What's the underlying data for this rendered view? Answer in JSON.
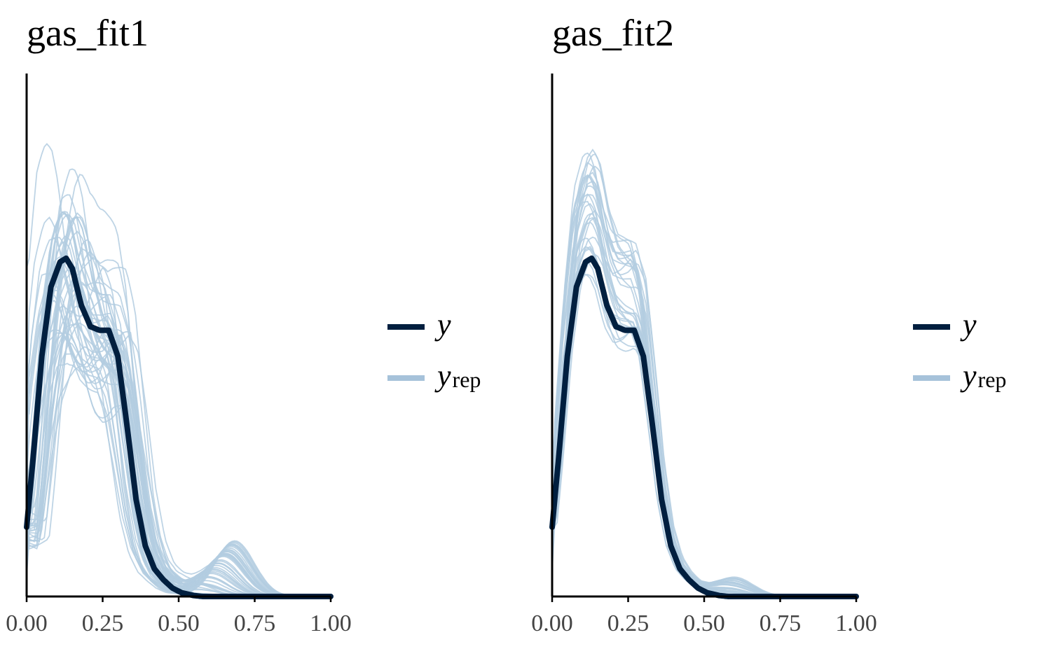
{
  "colors": {
    "y": "#011f3f",
    "yrep": "#b3cde0",
    "yrep_legend": "#a6c2da",
    "axis": "#000000",
    "tick_label": "#444444"
  },
  "legend": {
    "y_label": "y",
    "yrep_label": "y",
    "yrep_sub": "rep"
  },
  "chart_data": [
    {
      "type": "line",
      "title": "gas_fit1",
      "xlabel": "",
      "ylabel": "",
      "xlim": [
        0,
        1
      ],
      "xticks": [
        "0.00",
        "0.25",
        "0.50",
        "0.75",
        "1.00"
      ],
      "grid": false,
      "legend_position": "right",
      "observed": {
        "name": "y",
        "x": [
          0,
          0.02,
          0.05,
          0.08,
          0.11,
          0.13,
          0.15,
          0.18,
          0.21,
          0.24,
          0.27,
          0.3,
          0.33,
          0.36,
          0.39,
          0.42,
          0.45,
          0.48,
          0.51,
          0.55,
          0.58,
          0.62,
          0.7,
          1.0
        ],
        "y": [
          0.75,
          1.45,
          2.6,
          3.35,
          3.62,
          3.66,
          3.55,
          3.15,
          2.92,
          2.88,
          2.88,
          2.6,
          1.85,
          1.05,
          0.55,
          0.3,
          0.18,
          0.09,
          0.04,
          0.01,
          0.0,
          0.0,
          0.0,
          0.0
        ]
      },
      "replicates_count": 50,
      "replicates_spread": 0.28,
      "replicates_shift": 0.05,
      "replicates_tail": 0.35
    },
    {
      "type": "line",
      "title": "gas_fit2",
      "xlabel": "",
      "ylabel": "",
      "xlim": [
        0,
        1
      ],
      "xticks": [
        "0.00",
        "0.25",
        "0.50",
        "0.75",
        "1.00"
      ],
      "grid": false,
      "legend_position": "right",
      "observed": {
        "name": "y",
        "x": [
          0,
          0.02,
          0.05,
          0.08,
          0.11,
          0.13,
          0.15,
          0.18,
          0.21,
          0.24,
          0.27,
          0.3,
          0.33,
          0.36,
          0.39,
          0.42,
          0.45,
          0.48,
          0.51,
          0.55,
          0.58,
          0.62,
          0.7,
          1.0
        ],
        "y": [
          0.75,
          1.45,
          2.6,
          3.35,
          3.62,
          3.66,
          3.55,
          3.15,
          2.92,
          2.88,
          2.88,
          2.6,
          1.85,
          1.05,
          0.55,
          0.3,
          0.18,
          0.09,
          0.04,
          0.01,
          0.0,
          0.0,
          0.0,
          0.0
        ]
      },
      "replicates_count": 30,
      "replicates_spread": 0.1,
      "replicates_shift": 0.0,
      "replicates_tail": 0.12
    }
  ]
}
